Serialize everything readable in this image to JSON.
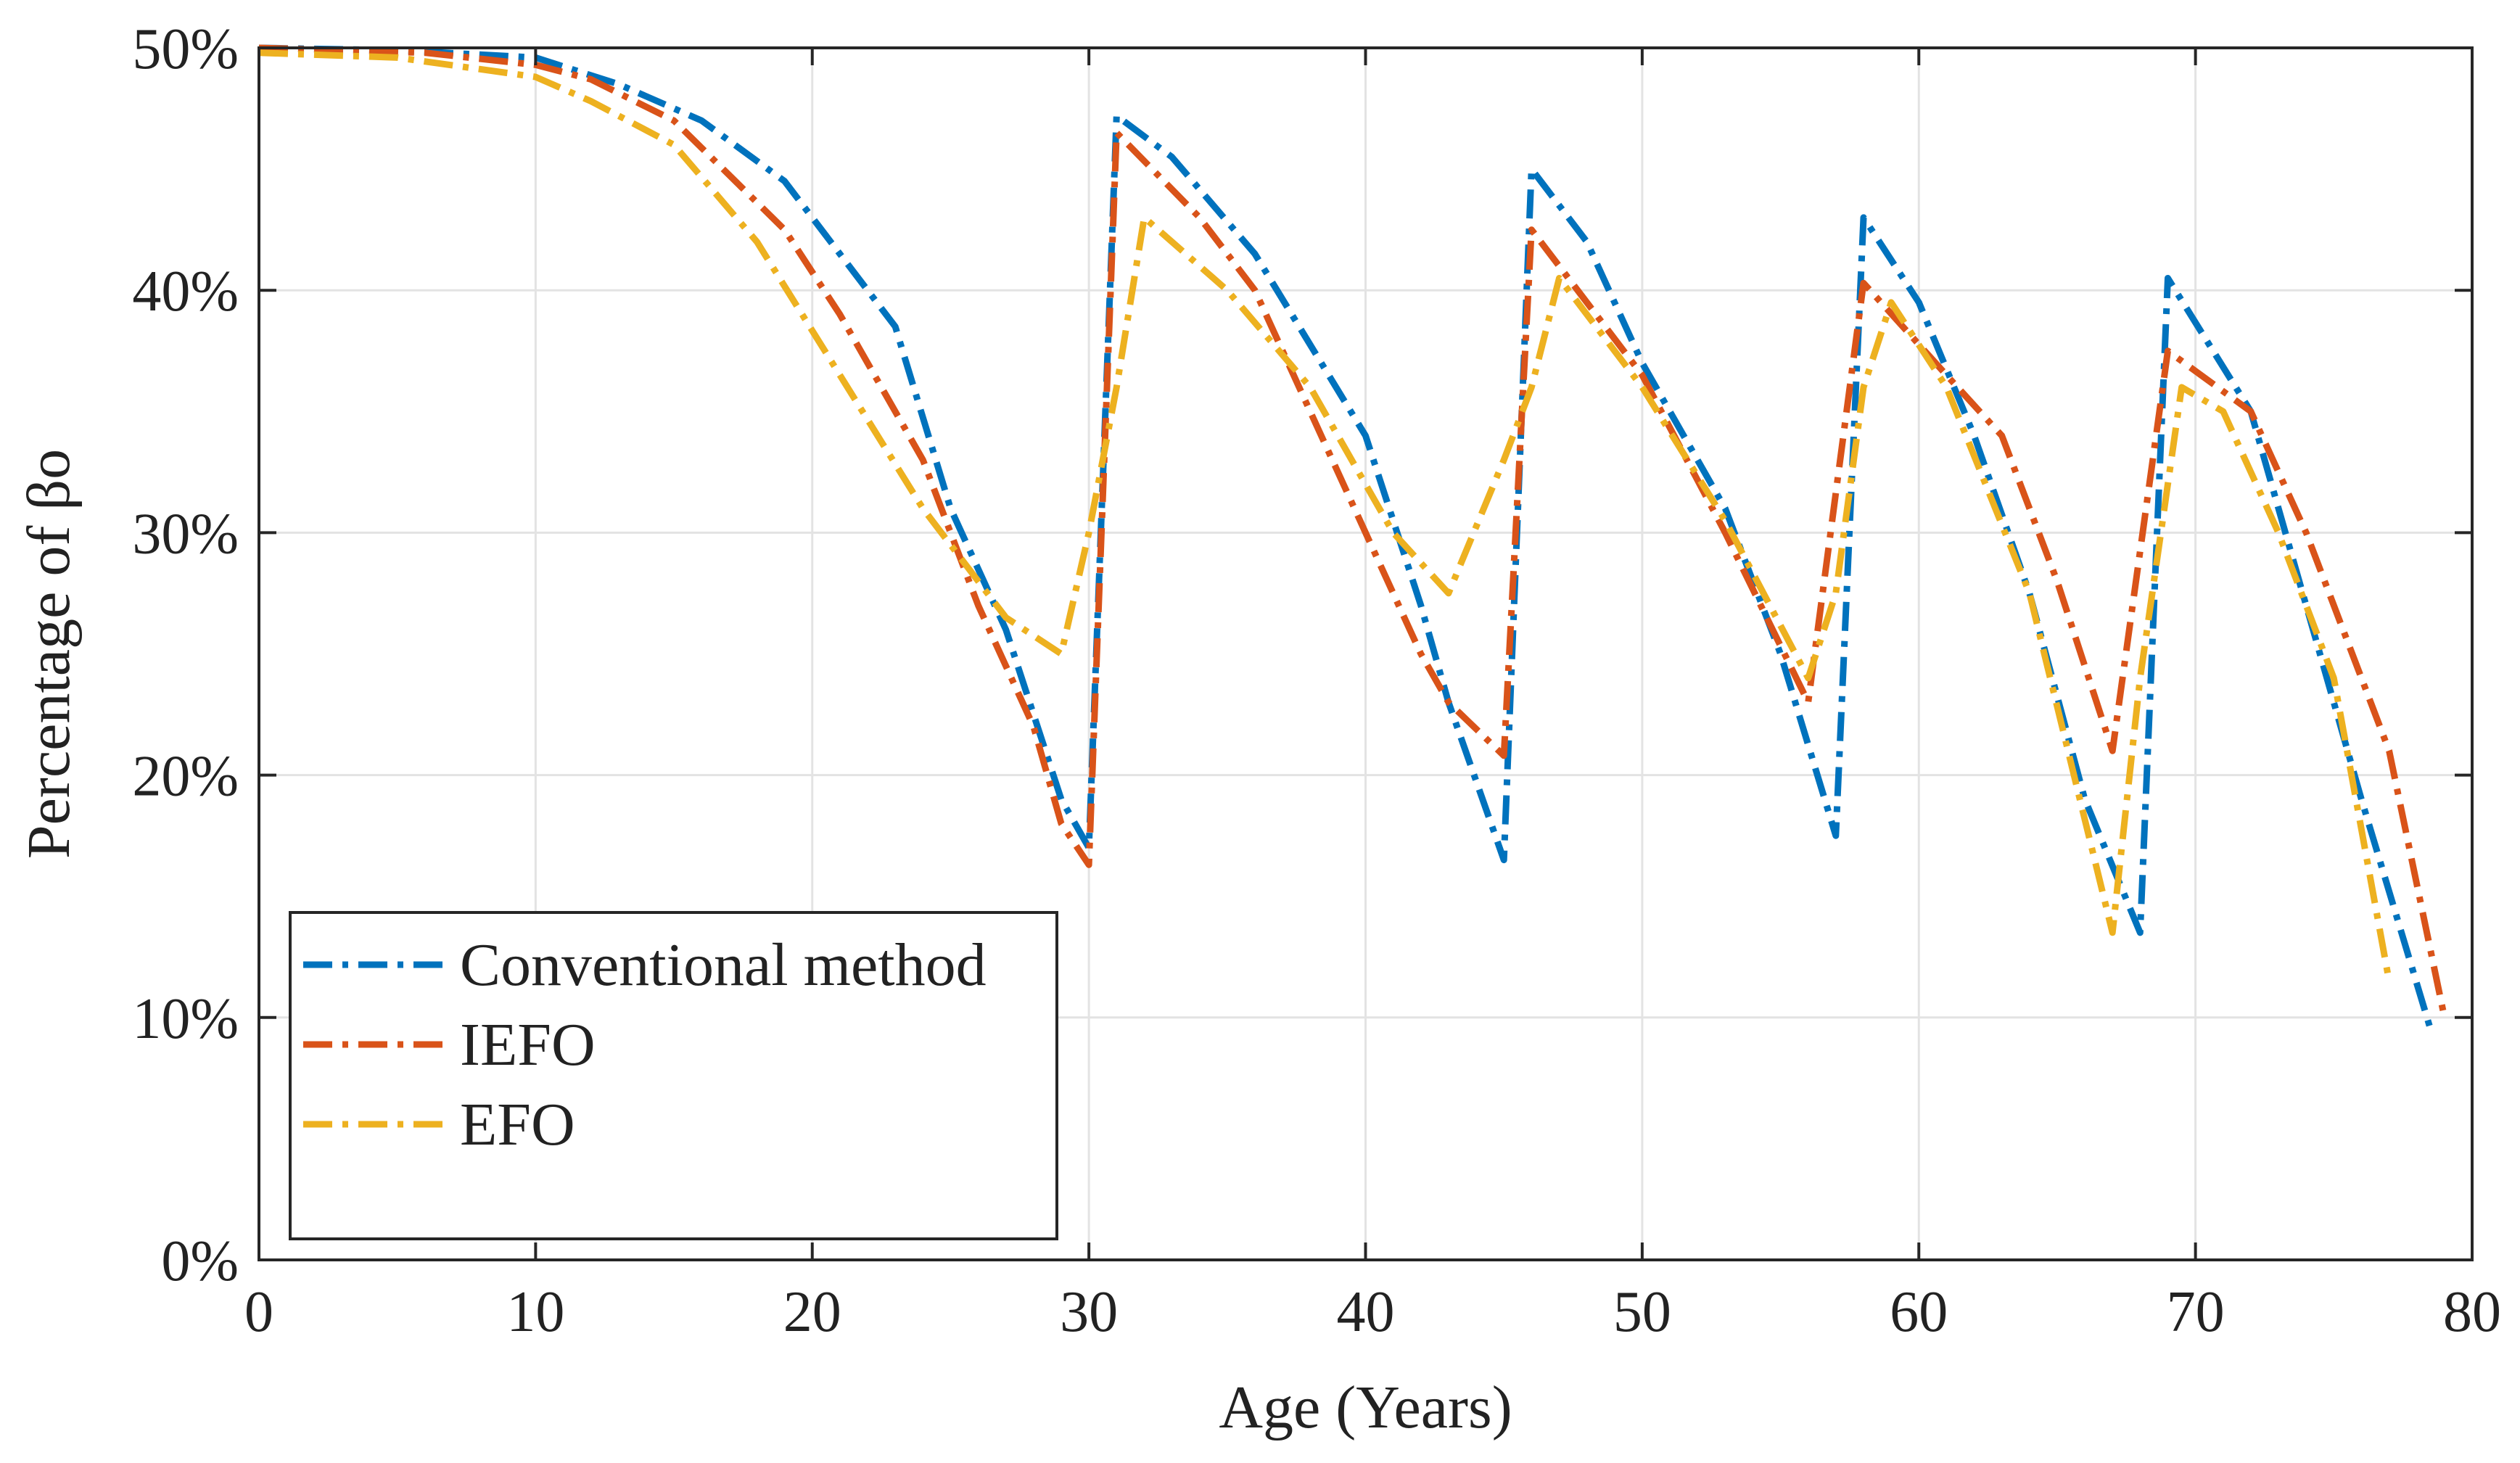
{
  "chart_data": {
    "type": "line",
    "title": "",
    "xlabel": "Age (Years)",
    "ylabel": "Percentage of βo",
    "xlim": [
      0,
      80
    ],
    "ylim": [
      0,
      50
    ],
    "grid": true,
    "legend_position": "bottom-left",
    "x_ticks": [
      0,
      10,
      20,
      30,
      40,
      50,
      60,
      70,
      80
    ],
    "x_tick_labels": [
      "0",
      "10",
      "20",
      "30",
      "40",
      "50",
      "60",
      "70",
      "80"
    ],
    "y_ticks": [
      0,
      10,
      20,
      30,
      40,
      50
    ],
    "y_tick_labels": [
      "0%",
      "10%",
      "20%",
      "30%",
      "40%",
      "50%"
    ],
    "series": [
      {
        "name": "Conventional method",
        "color": "#0072BD",
        "points": [
          [
            0,
            50
          ],
          [
            5,
            49.9
          ],
          [
            10,
            49.6
          ],
          [
            13,
            48.5
          ],
          [
            16,
            47
          ],
          [
            19,
            44.5
          ],
          [
            21,
            41.5
          ],
          [
            23,
            38.5
          ],
          [
            25,
            31
          ],
          [
            27,
            26
          ],
          [
            29,
            19
          ],
          [
            30,
            17
          ],
          [
            31,
            47.2
          ],
          [
            33,
            45.5
          ],
          [
            36,
            41.5
          ],
          [
            40,
            34
          ],
          [
            42,
            27
          ],
          [
            43,
            23
          ],
          [
            45,
            16.5
          ],
          [
            46,
            45
          ],
          [
            48,
            42
          ],
          [
            50,
            37
          ],
          [
            53,
            31
          ],
          [
            55,
            25
          ],
          [
            57,
            17.5
          ],
          [
            58,
            43
          ],
          [
            60,
            39.5
          ],
          [
            62,
            34
          ],
          [
            64,
            27.5
          ],
          [
            66,
            19
          ],
          [
            68,
            13.5
          ],
          [
            69,
            40.5
          ],
          [
            72,
            35
          ],
          [
            74,
            27
          ],
          [
            76,
            19
          ],
          [
            78.5,
            9.5
          ]
        ]
      },
      {
        "name": "IEFO",
        "color": "#D95319",
        "points": [
          [
            0,
            50
          ],
          [
            6,
            49.8
          ],
          [
            10,
            49.3
          ],
          [
            12,
            48.7
          ],
          [
            15,
            47
          ],
          [
            19,
            42.5
          ],
          [
            21,
            39
          ],
          [
            24,
            33
          ],
          [
            26,
            27
          ],
          [
            28,
            22
          ],
          [
            29,
            18
          ],
          [
            30,
            16.3
          ],
          [
            31,
            46.5
          ],
          [
            34,
            43
          ],
          [
            36,
            40
          ],
          [
            38,
            35
          ],
          [
            40,
            30
          ],
          [
            42,
            25
          ],
          [
            43,
            23
          ],
          [
            45,
            20.8
          ],
          [
            46,
            42.5
          ],
          [
            50,
            36.5
          ],
          [
            53,
            30
          ],
          [
            56,
            23
          ],
          [
            58,
            40.3
          ],
          [
            61,
            36.5
          ],
          [
            63,
            34
          ],
          [
            65,
            28
          ],
          [
            67,
            21
          ],
          [
            69,
            37.5
          ],
          [
            72,
            35
          ],
          [
            74,
            30
          ],
          [
            77,
            21
          ],
          [
            79,
            10
          ]
        ]
      },
      {
        "name": "EFO",
        "color": "#EDB120",
        "points": [
          [
            0,
            49.8
          ],
          [
            5,
            49.6
          ],
          [
            10,
            48.8
          ],
          [
            12,
            47.8
          ],
          [
            15,
            46
          ],
          [
            18,
            42
          ],
          [
            21,
            36.5
          ],
          [
            24,
            31
          ],
          [
            27,
            26.5
          ],
          [
            29,
            25
          ],
          [
            30,
            30
          ],
          [
            31,
            36
          ],
          [
            32,
            43
          ],
          [
            35,
            40
          ],
          [
            38,
            36
          ],
          [
            41,
            30
          ],
          [
            43,
            27.5
          ],
          [
            45,
            33
          ],
          [
            46,
            36
          ],
          [
            47,
            40.5
          ],
          [
            50,
            36
          ],
          [
            53,
            30.5
          ],
          [
            56,
            24
          ],
          [
            57,
            27.5
          ],
          [
            58,
            36
          ],
          [
            59,
            39.5
          ],
          [
            61,
            36
          ],
          [
            64,
            27.5
          ],
          [
            67,
            13.5
          ],
          [
            68,
            24
          ],
          [
            69.5,
            36
          ],
          [
            71,
            35
          ],
          [
            73,
            30
          ],
          [
            75,
            24
          ],
          [
            77,
            11.5
          ]
        ]
      }
    ]
  }
}
